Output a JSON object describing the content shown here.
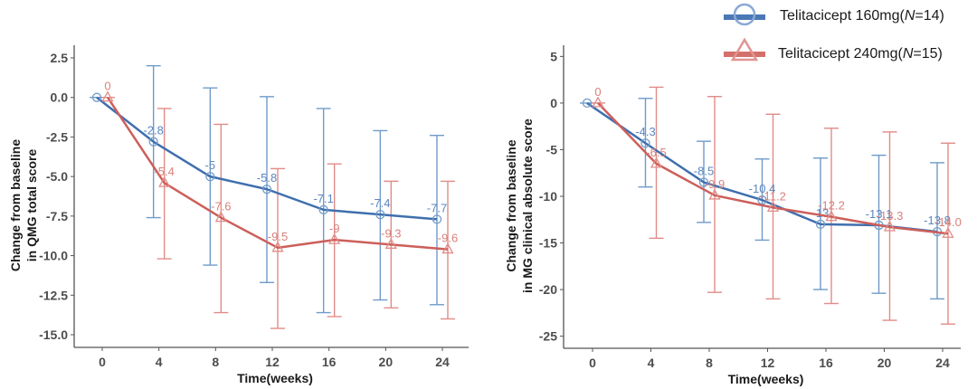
{
  "legend": {
    "items": [
      {
        "label_prefix": "Telitacicept 160mg(",
        "label_italic": "N",
        "label_suffix": "=14)",
        "color": "#4a78b5",
        "marker": "circle"
      },
      {
        "label_prefix": "Telitacicept 240mg(",
        "label_italic": "N",
        "label_suffix": "=15)",
        "color": "#d4706b",
        "marker": "triangle"
      }
    ]
  },
  "chart_data": [
    {
      "type": "line",
      "title": "",
      "xlabel": "Time(weeks)",
      "ylabel_lines": [
        "Change from baseline",
        "in QMG total score"
      ],
      "x": [
        0,
        4,
        8,
        12,
        16,
        20,
        24
      ],
      "xticks": [
        "0",
        "4",
        "8",
        "12",
        "16",
        "20",
        "24"
      ],
      "ylim": [
        -15.8,
        3.3
      ],
      "yticks": [
        2.5,
        0.0,
        -2.5,
        -5.0,
        -7.5,
        -10.0,
        -12.5,
        -15.0
      ],
      "ytick_labels": [
        "2.5",
        "0.0",
        "-2.5",
        "-5.0",
        "-7.5",
        "-10.0",
        "-12.5",
        "-15.0"
      ],
      "grid": false,
      "series": [
        {
          "name": "Telitacicept 160mg(N=14)",
          "color": "#4a78b5",
          "values": [
            0,
            -2.8,
            -5.0,
            -5.8,
            -7.1,
            -7.4,
            -7.7
          ],
          "labels": [
            "",
            "-2.8",
            "-5",
            "-5.8",
            "-7.1",
            "-7.4",
            "-7.7"
          ],
          "err_upper": [
            null,
            2.0,
            0.6,
            0.05,
            -0.7,
            -2.1,
            -2.4
          ],
          "err_lower": [
            null,
            -7.6,
            -10.6,
            -11.7,
            -13.6,
            -12.8,
            -13.1
          ]
        },
        {
          "name": "Telitacicept 240mg(N=15)",
          "color": "#d4706b",
          "values": [
            0,
            -5.4,
            -7.6,
            -9.5,
            -9.0,
            -9.3,
            -9.6
          ],
          "labels": [
            "0",
            "-5.4",
            "-7.6",
            "-9.5",
            "-9",
            "-9.3",
            "-9.6"
          ],
          "err_upper": [
            null,
            -0.7,
            -1.7,
            -4.5,
            -4.2,
            -5.3,
            -5.3
          ],
          "err_lower": [
            null,
            -10.2,
            -13.6,
            -14.6,
            -13.85,
            -13.3,
            -14.0
          ]
        }
      ]
    },
    {
      "type": "line",
      "title": "",
      "xlabel": "Time(weeks)",
      "ylabel_lines": [
        "Change from baseline",
        "in MG clinical absolute score"
      ],
      "x": [
        0,
        4,
        8,
        12,
        16,
        20,
        24
      ],
      "xticks": [
        "0",
        "4",
        "8",
        "12",
        "16",
        "20",
        "24"
      ],
      "ylim": [
        -26.3,
        6.2
      ],
      "yticks": [
        5,
        0,
        -5,
        -10,
        -15,
        -20,
        -25
      ],
      "ytick_labels": [
        "5",
        "0",
        "-5",
        "-10",
        "-15",
        "-20",
        "-25"
      ],
      "grid": false,
      "series": [
        {
          "name": "Telitacicept 160mg(N=14)",
          "color": "#4a78b5",
          "values": [
            0,
            -4.3,
            -8.5,
            -10.4,
            -13.0,
            -13.1,
            -13.8
          ],
          "labels": [
            "",
            "-4.3",
            "-8.5",
            "-10.4",
            "-13",
            "-13.1",
            "-13.8"
          ],
          "err_upper": [
            null,
            0.5,
            -4.1,
            -6.0,
            -5.9,
            -5.6,
            -6.4
          ],
          "err_lower": [
            null,
            -9.0,
            -12.8,
            -14.7,
            -20.0,
            -20.4,
            -21.0
          ]
        },
        {
          "name": "Telitacicept 240mg(N=15)",
          "color": "#d4706b",
          "values": [
            0,
            -6.5,
            -9.9,
            -11.2,
            -12.2,
            -13.3,
            -14.0
          ],
          "labels": [
            "0",
            "-6.5",
            "-9.9",
            "-11.2",
            "-12.2",
            "-13.3",
            "-14.0"
          ],
          "err_upper": [
            null,
            1.7,
            0.7,
            -1.2,
            -2.7,
            -3.1,
            -4.3
          ],
          "err_lower": [
            null,
            -14.5,
            -20.3,
            -21.0,
            -21.5,
            -23.3,
            -23.7
          ]
        }
      ]
    }
  ]
}
